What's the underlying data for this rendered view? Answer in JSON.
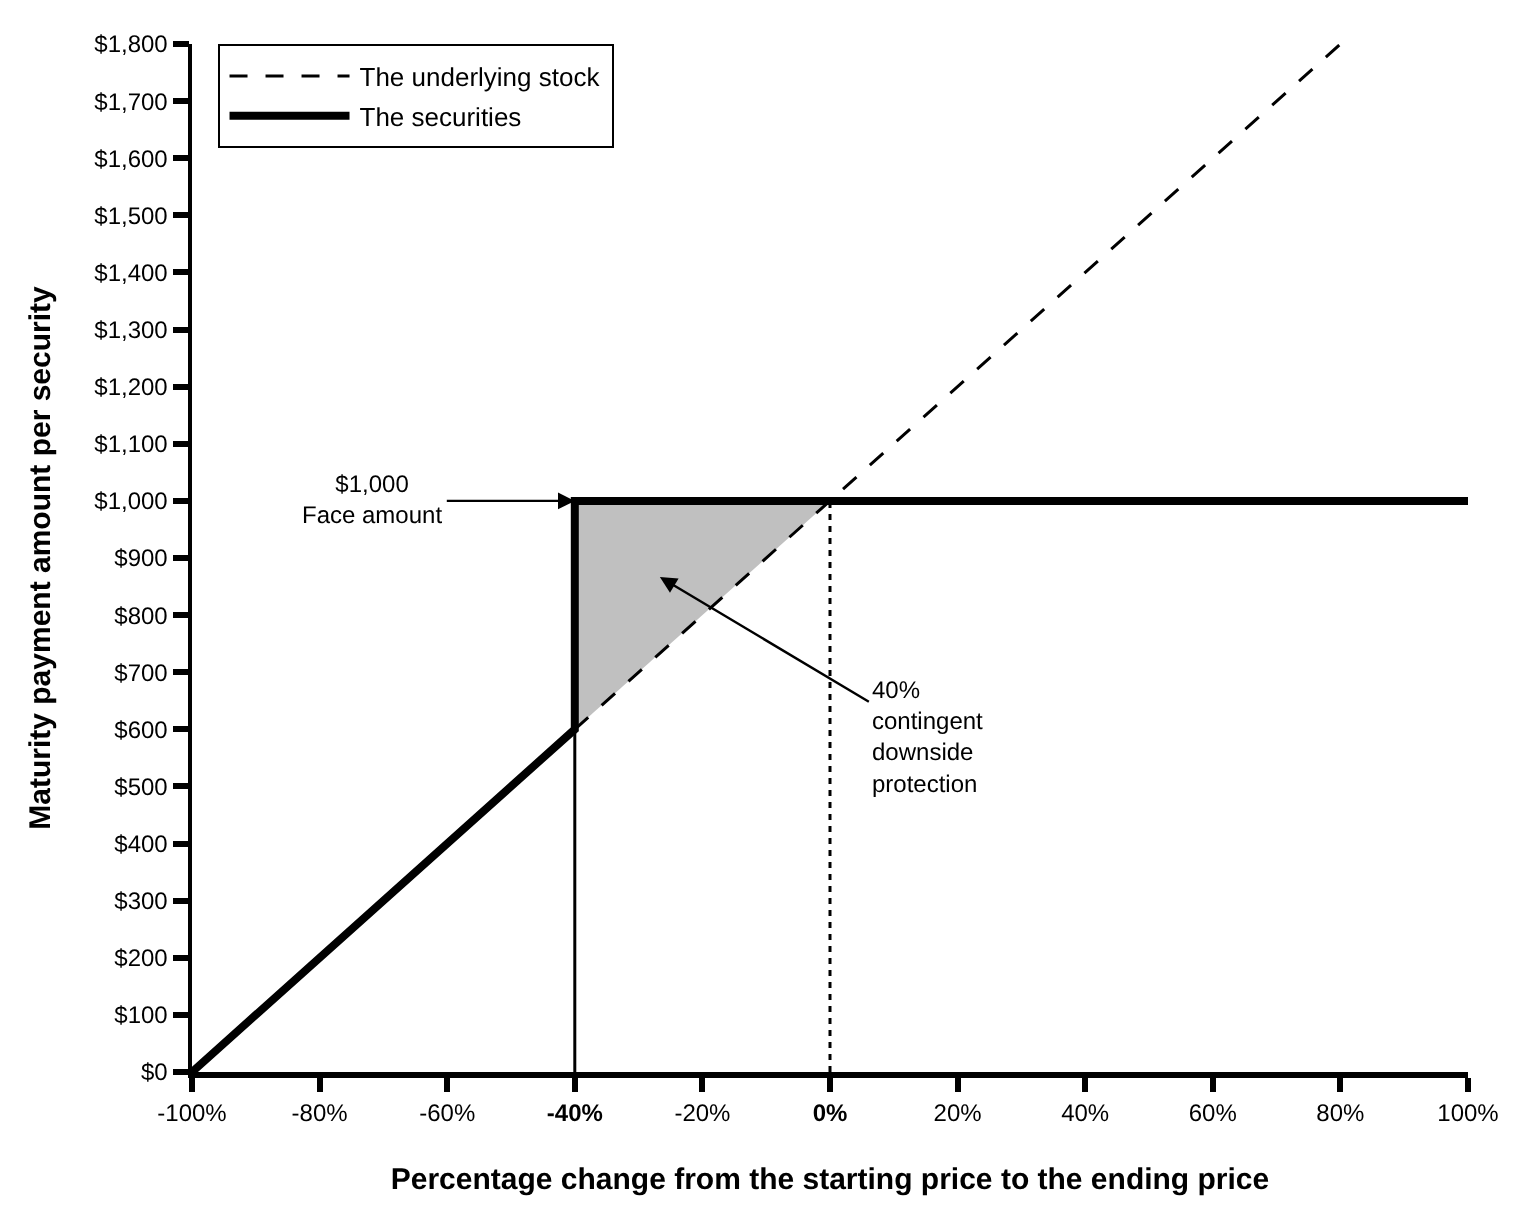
{
  "chart_data": {
    "type": "line",
    "xlabel": "Percentage change from the starting price to the ending price",
    "ylabel": "Maturity payment amount per security",
    "xlim": [
      -100,
      100
    ],
    "xticks": [
      {
        "value": -100,
        "label": "-100%"
      },
      {
        "value": -80,
        "label": "-80%"
      },
      {
        "value": -60,
        "label": "-60%"
      },
      {
        "value": -40,
        "label": "-40%"
      },
      {
        "value": -20,
        "label": "-20%"
      },
      {
        "value": 0,
        "label": "0%"
      },
      {
        "value": 20,
        "label": "20%"
      },
      {
        "value": 40,
        "label": "40%"
      },
      {
        "value": 60,
        "label": "60%"
      },
      {
        "value": 80,
        "label": "80%"
      },
      {
        "value": 100,
        "label": "100%"
      }
    ],
    "ylim": [
      0,
      1800
    ],
    "yticks": [
      {
        "value": 0,
        "label": "$0"
      },
      {
        "value": 100,
        "label": "$100"
      },
      {
        "value": 200,
        "label": "$200"
      },
      {
        "value": 300,
        "label": "$300"
      },
      {
        "value": 400,
        "label": "$400"
      },
      {
        "value": 500,
        "label": "$500"
      },
      {
        "value": 600,
        "label": "$600"
      },
      {
        "value": 700,
        "label": "$700"
      },
      {
        "value": 800,
        "label": "$800"
      },
      {
        "value": 900,
        "label": "$900"
      },
      {
        "value": 1000,
        "label": "$1,000"
      },
      {
        "value": 1100,
        "label": "$1,100"
      },
      {
        "value": 1200,
        "label": "$1,200"
      },
      {
        "value": 1300,
        "label": "$1,300"
      },
      {
        "value": 1400,
        "label": "$1,400"
      },
      {
        "value": 1500,
        "label": "$1,500"
      },
      {
        "value": 1600,
        "label": "$1,600"
      },
      {
        "value": 1700,
        "label": "$1,700"
      },
      {
        "value": 1800,
        "label": "$1,800"
      }
    ],
    "series": [
      {
        "type": "area",
        "color": "#c0c0c0",
        "x": [
          -40,
          -40,
          0
        ],
        "values": [
          600,
          1000,
          1000
        ]
      },
      {
        "name": "The underlying stock",
        "color": "#000000",
        "line_style": "dashed",
        "x": [
          -40,
          80
        ],
        "values": [
          600,
          1800
        ]
      },
      {
        "name": "The securities",
        "color": "#000000",
        "line_style": "solid",
        "x": [
          -100,
          -40,
          -40,
          100
        ],
        "values": [
          0,
          600,
          1000,
          1000
        ]
      }
    ],
    "ref_lines": [
      {
        "axis": "x",
        "value": -40,
        "color": "#000000",
        "line_style": "solid"
      },
      {
        "axis": "x",
        "value": 0,
        "color": "#000000",
        "line_style": "dotted"
      }
    ],
    "annotations": [
      {
        "text": "$1,000\nFace amount",
        "x": -40,
        "y": 1000
      },
      "40%\ncontingent\ndownside\nprotection"
    ],
    "legend": "top left"
  }
}
